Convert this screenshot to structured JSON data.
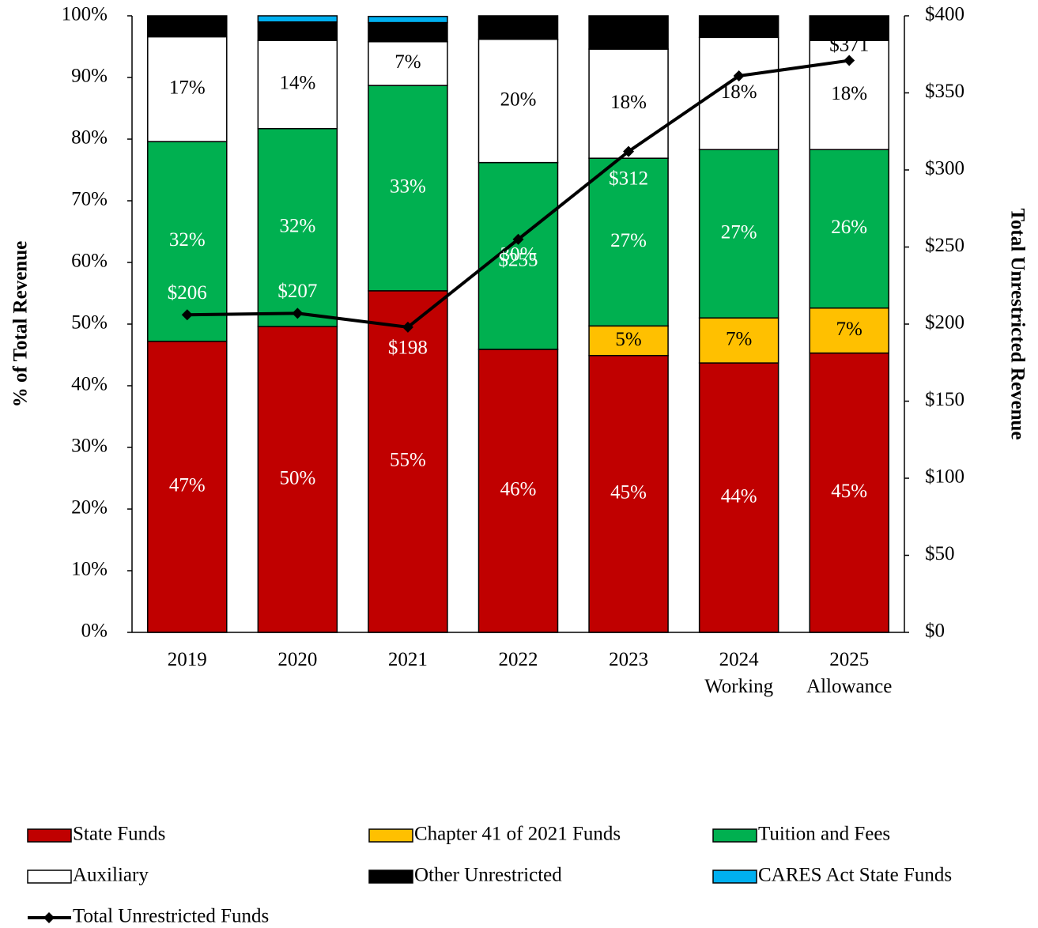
{
  "chart_data": {
    "type": "bar",
    "stacked": true,
    "categories": [
      "2019",
      "2020",
      "2021",
      "2022",
      "2023",
      "2024 Working",
      "2025 Allowance"
    ],
    "y_label": "% of Total Revenue",
    "y2_label": "Total Unrestricted Revenue",
    "ylim": [
      0,
      100
    ],
    "yticks": [
      {
        "value": 0,
        "label": "0%"
      },
      {
        "value": 10,
        "label": "10%"
      },
      {
        "value": 20,
        "label": "20%"
      },
      {
        "value": 30,
        "label": "30%"
      },
      {
        "value": 40,
        "label": "40%"
      },
      {
        "value": 50,
        "label": "50%"
      },
      {
        "value": 60,
        "label": "60%"
      },
      {
        "value": 70,
        "label": "70%"
      },
      {
        "value": 80,
        "label": "80%"
      },
      {
        "value": 90,
        "label": "90%"
      },
      {
        "value": 100,
        "label": "100%"
      }
    ],
    "y2lim": [
      0,
      400
    ],
    "y2ticks": [
      {
        "value": 0,
        "label": "$0"
      },
      {
        "value": 50,
        "label": "$50"
      },
      {
        "value": 100,
        "label": "$100"
      },
      {
        "value": 150,
        "label": "$150"
      },
      {
        "value": 200,
        "label": "$200"
      },
      {
        "value": 250,
        "label": "$250"
      },
      {
        "value": 300,
        "label": "$300"
      },
      {
        "value": 350,
        "label": "$350"
      },
      {
        "value": 400,
        "label": "$400"
      }
    ],
    "grid": false,
    "series": [
      {
        "name": "State Funds",
        "color": "#c00000",
        "values": [
          47.2,
          49.6,
          55.4,
          45.9,
          44.9,
          43.7,
          45.3
        ],
        "value_labels": [
          "47%",
          "50%",
          "55%",
          "46%",
          "45%",
          "44%",
          "45%"
        ]
      },
      {
        "name": "Chapter 41 of 2021 Funds",
        "color": "#ffc000",
        "values": [
          0,
          0,
          0,
          0,
          4.8,
          7.3,
          7.3
        ],
        "value_labels": [
          null,
          null,
          null,
          null,
          "5%",
          "7%",
          "7%"
        ]
      },
      {
        "name": "Tuition and Fees",
        "color": "#00b050",
        "values": [
          32.4,
          32.1,
          33.3,
          30.3,
          27.2,
          27.3,
          25.7
        ],
        "value_labels": [
          "32%",
          "32%",
          "33%",
          "30%",
          "27%",
          "27%",
          "26%"
        ]
      },
      {
        "name": "Auxiliary",
        "color": "#ffffff",
        "values": [
          17,
          14.3,
          7.1,
          20,
          17.7,
          18.2,
          17.7
        ],
        "value_labels": [
          "17%",
          "14%",
          "7%",
          "20%",
          "18%",
          "18%",
          "18%"
        ]
      },
      {
        "name": "Other Unrestricted",
        "color": "#000000",
        "values": [
          3.4,
          3,
          3.1,
          3.8,
          5.4,
          3.5,
          4
        ]
      },
      {
        "name": "CARES Act State Funds",
        "color": "#00b0f0",
        "values": [
          0,
          1,
          1,
          0,
          0,
          0,
          0
        ]
      },
      {
        "name": "Total Unrestricted Funds",
        "type": "line",
        "axis": "y2",
        "color": "#000000",
        "values": [
          206,
          207,
          198,
          255,
          312,
          361,
          371
        ],
        "value_labels": [
          "$206",
          "$207",
          "$198",
          "$255",
          "$312",
          null,
          "$371"
        ]
      }
    ]
  }
}
